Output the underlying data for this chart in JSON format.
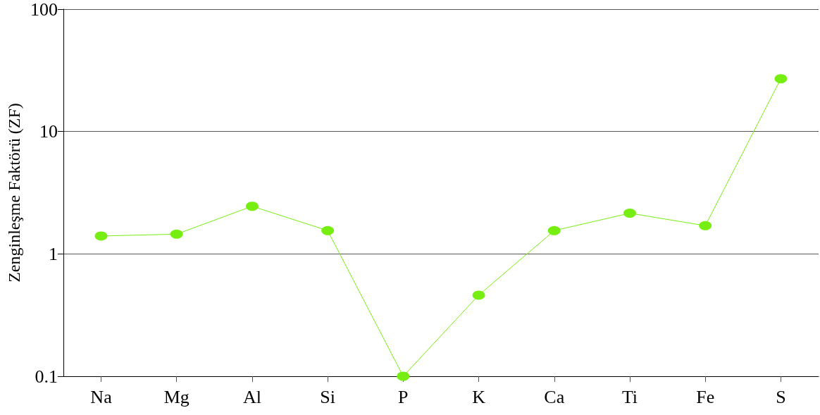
{
  "chart_data": {
    "type": "line",
    "ylabel": "Zenginleşme Faktörü (ZF)",
    "categories": [
      "Na",
      "Mg",
      "Al",
      "Si",
      "P",
      "K",
      "Ca",
      "Ti",
      "Fe",
      "S"
    ],
    "series": [
      {
        "color": "#77ee11",
        "values": [
          1.4,
          1.45,
          2.45,
          1.55,
          0.1,
          0.46,
          1.55,
          2.15,
          1.7,
          27
        ]
      }
    ],
    "log": "y",
    "ylim": [
      0.1,
      100
    ],
    "yticks": [
      0.1,
      1,
      10,
      100
    ],
    "grid": "y",
    "marker": "circle",
    "line_style": "solid"
  }
}
